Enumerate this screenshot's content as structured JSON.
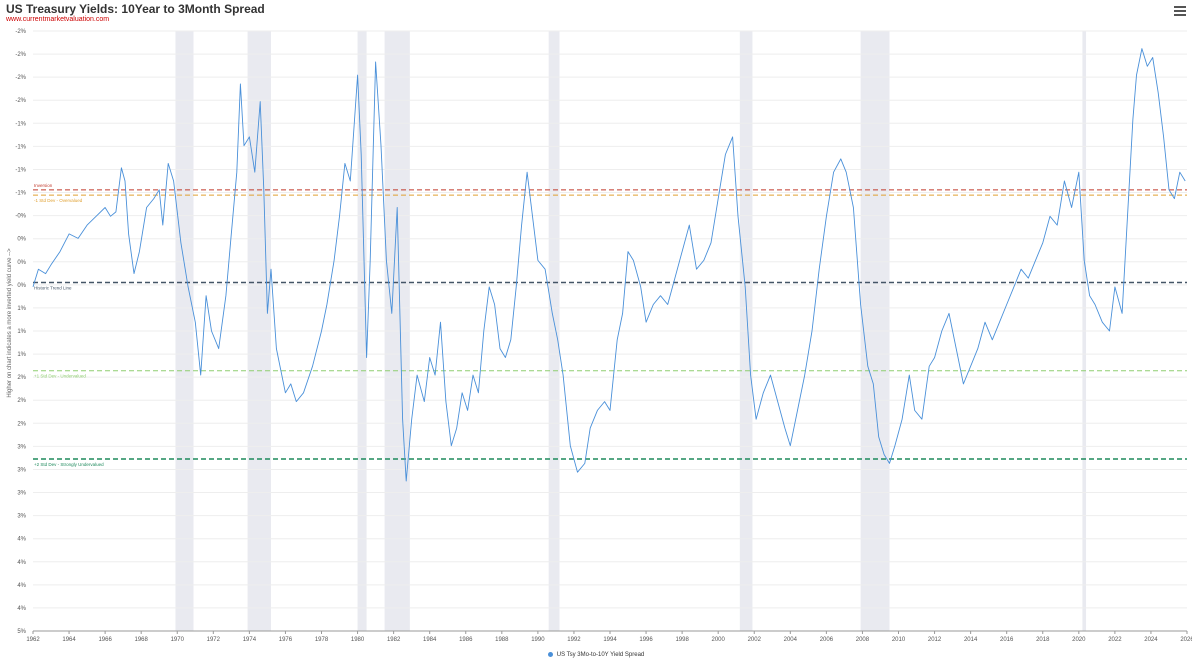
{
  "header": {
    "title": "US Treasury Yields: 10Year to 3Month Spread",
    "source": "www.currentmarketvaluation.com",
    "menu_icon": "hamburger-menu-icon"
  },
  "colors": {
    "series": "#4a90d9",
    "recession": "#e9eaf0",
    "inversion": "#c0392b",
    "overvalued": "#e0a030",
    "trend": "#445566",
    "undervalued": "#8fce70",
    "strongly_undervalued": "#1e8a5c"
  },
  "chart_data": {
    "type": "line",
    "title": "US Treasury Yields: 10Year to 3Month Spread",
    "ylabel": "Higher on chart indicates a more inverted yield curve -->",
    "xlabel": "",
    "x_ticks": [
      "1962",
      "1964",
      "1966",
      "1968",
      "1970",
      "1972",
      "1974",
      "1976",
      "1978",
      "1980",
      "1982",
      "1984",
      "1986",
      "1988",
      "1990",
      "1992",
      "1994",
      "1996",
      "1998",
      "2000",
      "2002",
      "2004",
      "2006",
      "2008",
      "2010",
      "2012",
      "2014",
      "2016",
      "2018",
      "2020",
      "2022",
      "2024",
      "2026"
    ],
    "y_tick_labels": [
      "-2%",
      "-2%",
      "-2%",
      "-2%",
      "-1%",
      "-1%",
      "-1%",
      "-1%",
      "-0%",
      "0%",
      "0%",
      "0%",
      "1%",
      "1%",
      "1%",
      "2%",
      "2%",
      "2%",
      "3%",
      "3%",
      "3%",
      "3%",
      "4%",
      "4%",
      "4%",
      "4%",
      "5%"
    ],
    "xlim": [
      1962,
      2026
    ],
    "ylim": [
      5.0,
      -1.8
    ],
    "y_inverted": true,
    "grid": true,
    "legend_position": "bottom-center",
    "recessions": [
      [
        1969.9,
        1970.9
      ],
      [
        1973.9,
        1975.2
      ],
      [
        1980.0,
        1980.5
      ],
      [
        1981.5,
        1982.9
      ],
      [
        1990.6,
        1991.2
      ],
      [
        2001.2,
        2001.9
      ],
      [
        2007.9,
        2009.5
      ],
      [
        2020.2,
        2020.4
      ]
    ],
    "reference_lines": [
      {
        "name": "Inversion",
        "value": 0.0,
        "style": "dashed",
        "color_key": "inversion"
      },
      {
        "name": "-1 Std Dev - Overvalued",
        "value": 0.06,
        "style": "dashed",
        "color_key": "overvalued"
      },
      {
        "name": "Historic Trend Line",
        "value": 1.05,
        "style": "dashed",
        "color_key": "trend"
      },
      {
        "name": "+1 Std Dev - Undervalued",
        "value": 2.05,
        "style": "dashed",
        "color_key": "undervalued"
      },
      {
        "name": "+2 Std Dev - Strongly Undervalued",
        "value": 3.05,
        "style": "dashed",
        "color_key": "strongly_undervalued"
      }
    ],
    "series": [
      {
        "name": "US Tsy 3Mo-to-10Y Yield Spread",
        "points": [
          [
            1962.0,
            1.1
          ],
          [
            1962.3,
            0.9
          ],
          [
            1962.7,
            0.95
          ],
          [
            1963.0,
            0.85
          ],
          [
            1963.5,
            0.7
          ],
          [
            1964.0,
            0.5
          ],
          [
            1964.5,
            0.55
          ],
          [
            1965.0,
            0.4
          ],
          [
            1965.5,
            0.3
          ],
          [
            1966.0,
            0.2
          ],
          [
            1966.3,
            0.3
          ],
          [
            1966.6,
            0.25
          ],
          [
            1966.9,
            -0.25
          ],
          [
            1967.1,
            -0.1
          ],
          [
            1967.3,
            0.5
          ],
          [
            1967.6,
            0.95
          ],
          [
            1967.9,
            0.7
          ],
          [
            1968.3,
            0.2
          ],
          [
            1968.7,
            0.1
          ],
          [
            1969.0,
            0.0
          ],
          [
            1969.2,
            0.4
          ],
          [
            1969.5,
            -0.3
          ],
          [
            1969.8,
            -0.1
          ],
          [
            1970.2,
            0.6
          ],
          [
            1970.6,
            1.1
          ],
          [
            1971.0,
            1.5
          ],
          [
            1971.3,
            2.1
          ],
          [
            1971.6,
            1.2
          ],
          [
            1971.9,
            1.6
          ],
          [
            1972.3,
            1.8
          ],
          [
            1972.7,
            1.2
          ],
          [
            1973.0,
            0.5
          ],
          [
            1973.3,
            -0.2
          ],
          [
            1973.5,
            -1.2
          ],
          [
            1973.7,
            -0.5
          ],
          [
            1974.0,
            -0.6
          ],
          [
            1974.3,
            -0.2
          ],
          [
            1974.6,
            -1.0
          ],
          [
            1974.8,
            0.0
          ],
          [
            1975.0,
            1.4
          ],
          [
            1975.2,
            0.9
          ],
          [
            1975.5,
            1.8
          ],
          [
            1976.0,
            2.3
          ],
          [
            1976.3,
            2.2
          ],
          [
            1976.6,
            2.4
          ],
          [
            1977.0,
            2.3
          ],
          [
            1977.5,
            2.0
          ],
          [
            1978.0,
            1.6
          ],
          [
            1978.3,
            1.3
          ],
          [
            1978.7,
            0.8
          ],
          [
            1979.0,
            0.3
          ],
          [
            1979.3,
            -0.3
          ],
          [
            1979.6,
            -0.1
          ],
          [
            1980.0,
            -1.3
          ],
          [
            1980.2,
            -0.4
          ],
          [
            1980.5,
            1.9
          ],
          [
            1980.7,
            0.8
          ],
          [
            1981.0,
            -1.45
          ],
          [
            1981.3,
            -0.5
          ],
          [
            1981.6,
            0.8
          ],
          [
            1981.9,
            1.4
          ],
          [
            1982.2,
            0.2
          ],
          [
            1982.5,
            2.6
          ],
          [
            1982.7,
            3.3
          ],
          [
            1983.0,
            2.6
          ],
          [
            1983.3,
            2.1
          ],
          [
            1983.7,
            2.4
          ],
          [
            1984.0,
            1.9
          ],
          [
            1984.3,
            2.1
          ],
          [
            1984.6,
            1.5
          ],
          [
            1984.9,
            2.4
          ],
          [
            1985.2,
            2.9
          ],
          [
            1985.5,
            2.7
          ],
          [
            1985.8,
            2.3
          ],
          [
            1986.1,
            2.5
          ],
          [
            1986.4,
            2.1
          ],
          [
            1986.7,
            2.3
          ],
          [
            1987.0,
            1.6
          ],
          [
            1987.3,
            1.1
          ],
          [
            1987.6,
            1.3
          ],
          [
            1987.9,
            1.8
          ],
          [
            1988.2,
            1.9
          ],
          [
            1988.5,
            1.7
          ],
          [
            1988.8,
            1.1
          ],
          [
            1989.1,
            0.4
          ],
          [
            1989.4,
            -0.2
          ],
          [
            1989.7,
            0.3
          ],
          [
            1990.0,
            0.8
          ],
          [
            1990.4,
            0.9
          ],
          [
            1990.8,
            1.4
          ],
          [
            1991.1,
            1.7
          ],
          [
            1991.4,
            2.1
          ],
          [
            1991.8,
            2.9
          ],
          [
            1992.2,
            3.2
          ],
          [
            1992.6,
            3.1
          ],
          [
            1992.9,
            2.7
          ],
          [
            1993.3,
            2.5
          ],
          [
            1993.7,
            2.4
          ],
          [
            1994.0,
            2.5
          ],
          [
            1994.4,
            1.7
          ],
          [
            1994.7,
            1.4
          ],
          [
            1995.0,
            0.7
          ],
          [
            1995.3,
            0.8
          ],
          [
            1995.7,
            1.1
          ],
          [
            1996.0,
            1.5
          ],
          [
            1996.4,
            1.3
          ],
          [
            1996.8,
            1.2
          ],
          [
            1997.2,
            1.3
          ],
          [
            1997.6,
            1.0
          ],
          [
            1998.0,
            0.7
          ],
          [
            1998.4,
            0.4
          ],
          [
            1998.8,
            0.9
          ],
          [
            1999.2,
            0.8
          ],
          [
            1999.6,
            0.6
          ],
          [
            2000.0,
            0.1
          ],
          [
            2000.4,
            -0.4
          ],
          [
            2000.8,
            -0.6
          ],
          [
            2001.1,
            0.3
          ],
          [
            2001.5,
            1.1
          ],
          [
            2001.8,
            2.1
          ],
          [
            2002.1,
            2.6
          ],
          [
            2002.5,
            2.3
          ],
          [
            2002.9,
            2.1
          ],
          [
            2003.3,
            2.4
          ],
          [
            2003.7,
            2.7
          ],
          [
            2004.0,
            2.9
          ],
          [
            2004.4,
            2.5
          ],
          [
            2004.8,
            2.1
          ],
          [
            2005.2,
            1.6
          ],
          [
            2005.6,
            0.9
          ],
          [
            2006.0,
            0.3
          ],
          [
            2006.4,
            -0.2
          ],
          [
            2006.8,
            -0.35
          ],
          [
            2007.1,
            -0.2
          ],
          [
            2007.5,
            0.2
          ],
          [
            2007.9,
            1.3
          ],
          [
            2008.3,
            2.0
          ],
          [
            2008.6,
            2.2
          ],
          [
            2008.9,
            2.8
          ],
          [
            2009.2,
            3.0
          ],
          [
            2009.5,
            3.1
          ],
          [
            2009.8,
            2.9
          ],
          [
            2010.2,
            2.6
          ],
          [
            2010.6,
            2.1
          ],
          [
            2010.9,
            2.5
          ],
          [
            2011.3,
            2.6
          ],
          [
            2011.7,
            2.0
          ],
          [
            2012.0,
            1.9
          ],
          [
            2012.4,
            1.6
          ],
          [
            2012.8,
            1.4
          ],
          [
            2013.2,
            1.8
          ],
          [
            2013.6,
            2.2
          ],
          [
            2014.0,
            2.0
          ],
          [
            2014.4,
            1.8
          ],
          [
            2014.8,
            1.5
          ],
          [
            2015.2,
            1.7
          ],
          [
            2015.6,
            1.5
          ],
          [
            2016.0,
            1.3
          ],
          [
            2016.4,
            1.1
          ],
          [
            2016.8,
            0.9
          ],
          [
            2017.2,
            1.0
          ],
          [
            2017.6,
            0.8
          ],
          [
            2018.0,
            0.6
          ],
          [
            2018.4,
            0.3
          ],
          [
            2018.8,
            0.4
          ],
          [
            2019.2,
            -0.1
          ],
          [
            2019.6,
            0.2
          ],
          [
            2020.0,
            -0.2
          ],
          [
            2020.3,
            0.8
          ],
          [
            2020.6,
            1.2
          ],
          [
            2020.9,
            1.3
          ],
          [
            2021.3,
            1.5
          ],
          [
            2021.7,
            1.6
          ],
          [
            2022.0,
            1.1
          ],
          [
            2022.4,
            1.4
          ],
          [
            2022.7,
            0.3
          ],
          [
            2023.0,
            -0.8
          ],
          [
            2023.2,
            -1.3
          ],
          [
            2023.5,
            -1.6
          ],
          [
            2023.8,
            -1.4
          ],
          [
            2024.1,
            -1.5
          ],
          [
            2024.4,
            -1.1
          ],
          [
            2024.7,
            -0.6
          ],
          [
            2025.0,
            0.0
          ],
          [
            2025.3,
            0.1
          ],
          [
            2025.6,
            -0.2
          ],
          [
            2025.9,
            -0.1
          ]
        ]
      }
    ]
  },
  "legend": {
    "label": "US Tsy 3Mo-to-10Y Yield Spread"
  }
}
